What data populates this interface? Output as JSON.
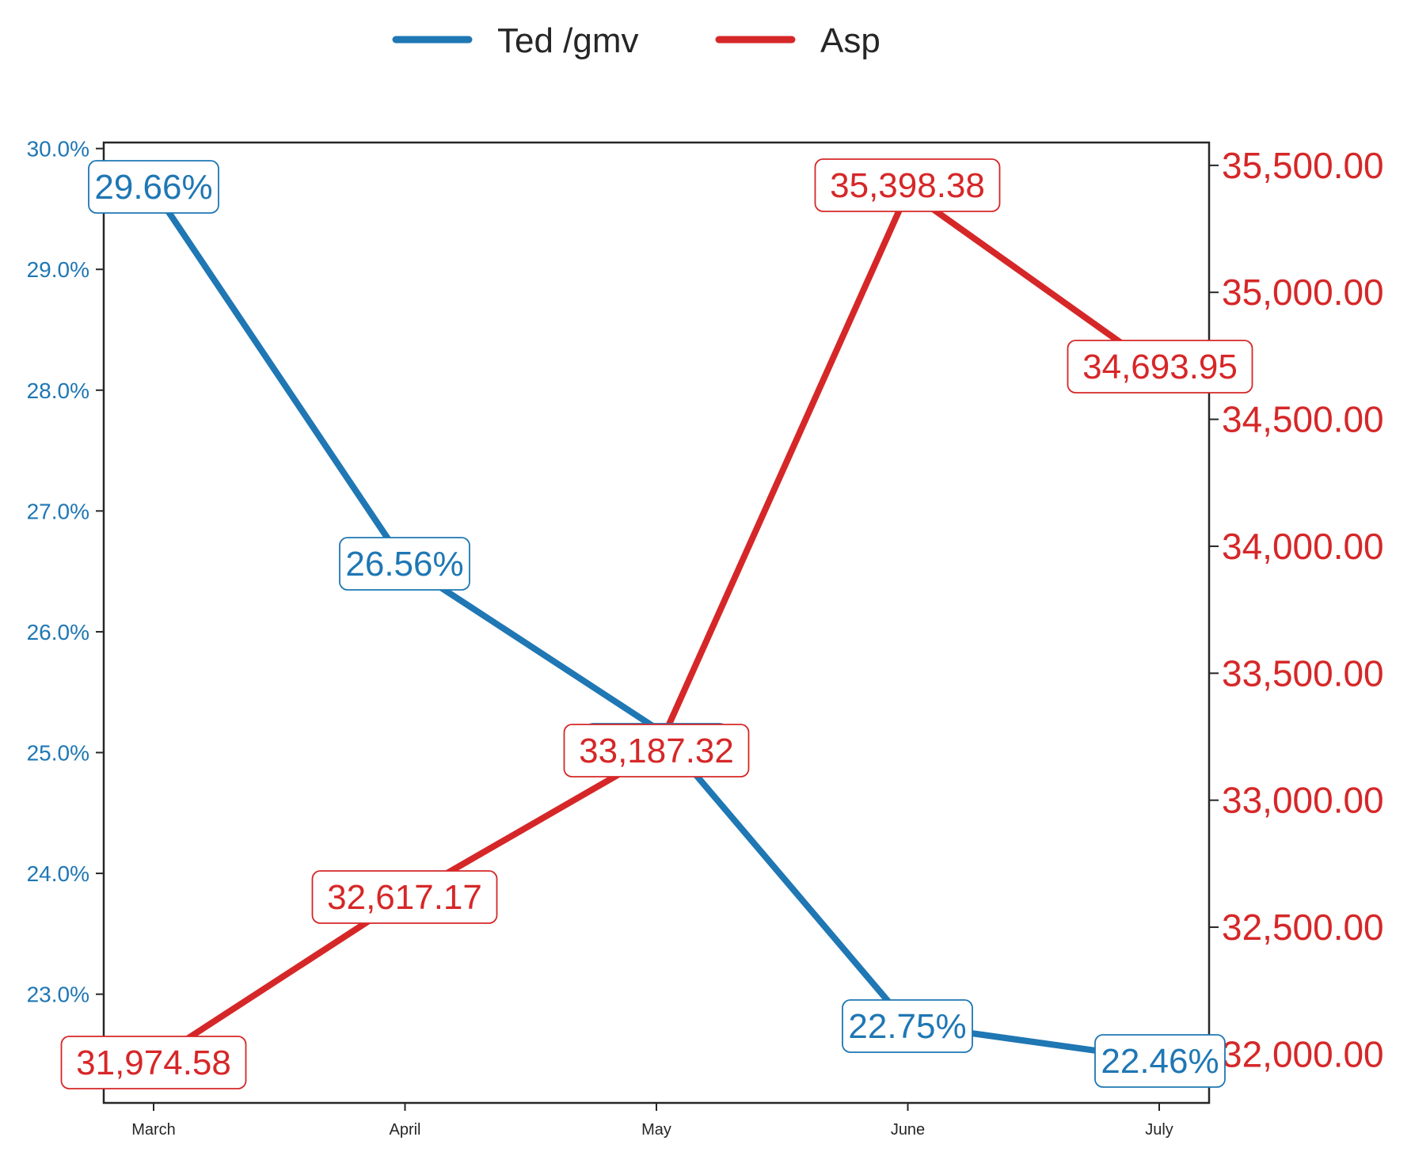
{
  "chart_data": {
    "type": "line",
    "categories": [
      "March",
      "April",
      "May",
      "June",
      "July"
    ],
    "series": [
      {
        "name": "Ted /gmv",
        "axis": "left",
        "color": "#1f77b4",
        "values": [
          29.66,
          26.56,
          25.2,
          22.75,
          22.46
        ],
        "labels": [
          "29.66%",
          "26.56%",
          "",
          "22.75%",
          "22.46%"
        ]
      },
      {
        "name": "Asp",
        "axis": "right",
        "color": "#d62728",
        "values": [
          31974.58,
          32617.17,
          33187.32,
          35398.38,
          34693.95
        ],
        "labels": [
          "31,974.58",
          "32,617.17",
          "33,187.32",
          "35,398.38",
          "34,693.95"
        ]
      }
    ],
    "y_left": {
      "ylim": [
        22.1,
        30.05
      ],
      "ticks": [
        23,
        24,
        25,
        26,
        27,
        28,
        29,
        30
      ],
      "tick_labels": [
        "23.0%",
        "24.0%",
        "25.0%",
        "26.0%",
        "27.0%",
        "28.0%",
        "29.0%",
        "30.0%"
      ],
      "color": "#1f77b4"
    },
    "y_right": {
      "ylim": [
        31808,
        35590
      ],
      "ticks": [
        32000,
        32500,
        33000,
        33500,
        34000,
        34500,
        35000,
        35500
      ],
      "tick_labels": [
        "32,000.00",
        "32,500.00",
        "33,000.00",
        "33,500.00",
        "34,000.00",
        "34,500.00",
        "35,000.00",
        "35,500.00"
      ],
      "color": "#d62728"
    },
    "legend_placement": "top-center",
    "grid": false,
    "title": "",
    "xlabel": "",
    "ylabel": ""
  }
}
